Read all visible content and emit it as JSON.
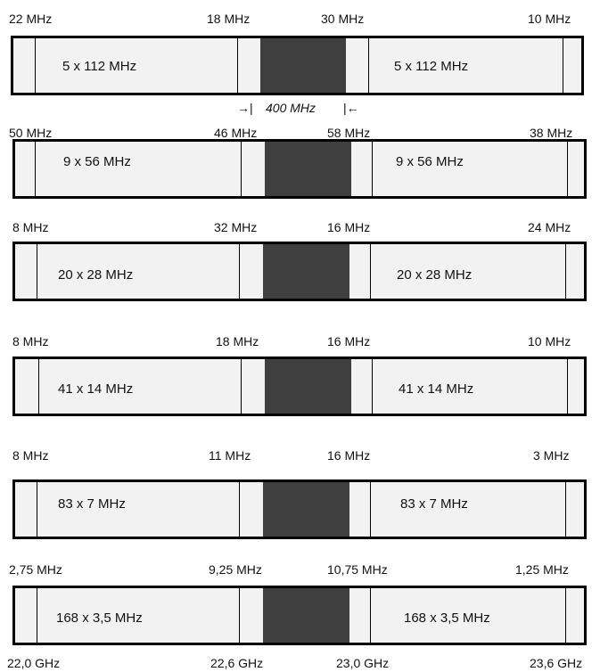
{
  "rows": [
    {
      "labels": [
        "22 MHz",
        "18 MHz",
        "30 MHz",
        "10 MHz"
      ],
      "channels": "5 x 112 MHz"
    },
    {
      "labels": [
        "50 MHz",
        "46 MHz",
        "58 MHz",
        "38 MHz"
      ],
      "channels": "9 x 56 MHz"
    },
    {
      "labels": [
        "8 MHz",
        "32 MHz",
        "16 MHz",
        "24 MHz"
      ],
      "channels": "20 x 28 MHz"
    },
    {
      "labels": [
        "8 MHz",
        "18 MHz",
        "16 MHz",
        "10 MHz"
      ],
      "channels": "41 x 14 MHz"
    },
    {
      "labels": [
        "8 MHz",
        "11 MHz",
        "16 MHz",
        "3 MHz"
      ],
      "channels": "83 x 7 MHz"
    },
    {
      "labels": [
        "2,75 MHz",
        "9,25 MHz",
        "10,75 MHz",
        "1,25 MHz"
      ],
      "channels": "168 x 3,5 MHz"
    }
  ],
  "gap_label": "400 MHz",
  "frequency_axis": [
    "22,0 GHz",
    "22,6 GHz",
    "23,0 GHz",
    "23,6 GHz"
  ]
}
